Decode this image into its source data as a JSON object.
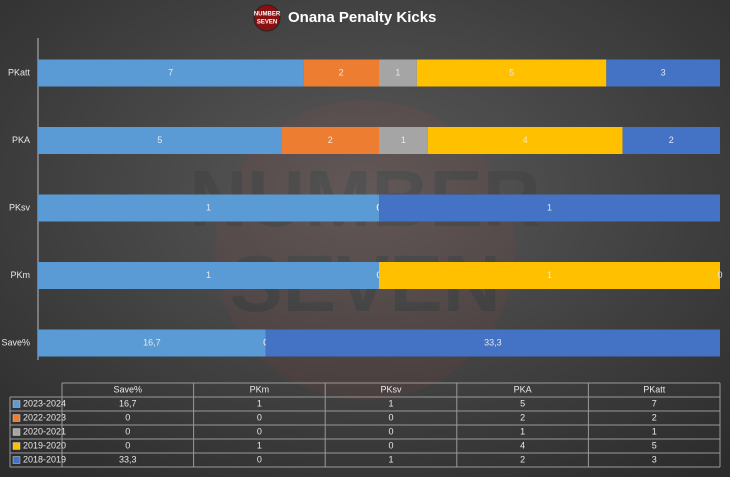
{
  "chart_data": {
    "type": "bar",
    "orientation": "horizontal",
    "stacking": "percent",
    "title": "Onana Penalty Kicks",
    "logo": [
      "NUMBER",
      "SEVEN"
    ],
    "watermark": [
      "NUMBER",
      "SEVEN"
    ],
    "categories": [
      "Save%",
      "PKm",
      "PKsv",
      "PKA",
      "PKatt"
    ],
    "series": [
      {
        "name": "2023-2024",
        "color": "#5b9bd5",
        "values": [
          16.7,
          1,
          1,
          5,
          7
        ],
        "value_labels": [
          "16,7",
          "1",
          "1",
          "5",
          "7"
        ]
      },
      {
        "name": "2022-2023",
        "color": "#ed7d31",
        "values": [
          0,
          0,
          0,
          2,
          2
        ]
      },
      {
        "name": "2020-2021",
        "color": "#a5a5a5",
        "values": [
          0,
          0,
          0,
          1,
          1
        ]
      },
      {
        "name": "2019-2020",
        "color": "#ffc000",
        "values": [
          0,
          1,
          0,
          4,
          5
        ]
      },
      {
        "name": "2018-2019",
        "color": "#4472c4",
        "values": [
          33.3,
          0,
          1,
          2,
          3
        ],
        "value_labels": [
          "33,3",
          "0",
          "1",
          "2",
          "3"
        ]
      }
    ],
    "data_table": true
  }
}
